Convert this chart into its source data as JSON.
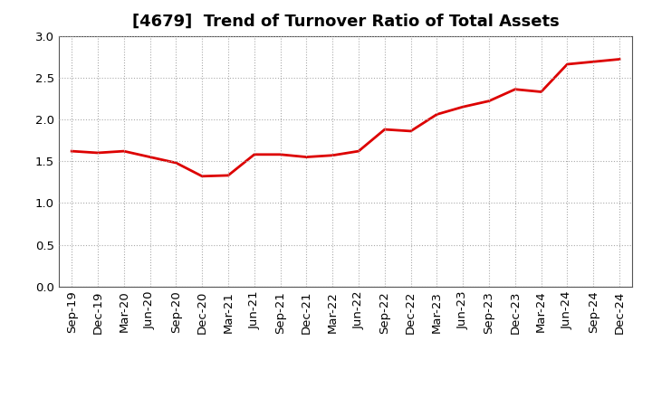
{
  "title": "[4679]  Trend of Turnover Ratio of Total Assets",
  "labels": [
    "Sep-19",
    "Dec-19",
    "Mar-20",
    "Jun-20",
    "Sep-20",
    "Dec-20",
    "Mar-21",
    "Jun-21",
    "Sep-21",
    "Dec-21",
    "Mar-22",
    "Jun-22",
    "Sep-22",
    "Dec-22",
    "Mar-23",
    "Jun-23",
    "Sep-23",
    "Dec-23",
    "Mar-24",
    "Jun-24",
    "Sep-24",
    "Dec-24"
  ],
  "values": [
    1.62,
    1.6,
    1.62,
    1.55,
    1.48,
    1.32,
    1.33,
    1.58,
    1.58,
    1.55,
    1.57,
    1.62,
    1.88,
    1.86,
    2.06,
    2.15,
    2.22,
    2.36,
    2.33,
    2.66,
    2.69,
    2.72
  ],
  "line_color": "#dd0000",
  "line_width": 2.0,
  "ylim": [
    0.0,
    3.0
  ],
  "yticks": [
    0.0,
    0.5,
    1.0,
    1.5,
    2.0,
    2.5,
    3.0
  ],
  "grid_color": "#aaaaaa",
  "background_color": "#ffffff",
  "title_fontsize": 13,
  "tick_fontsize": 9.5
}
